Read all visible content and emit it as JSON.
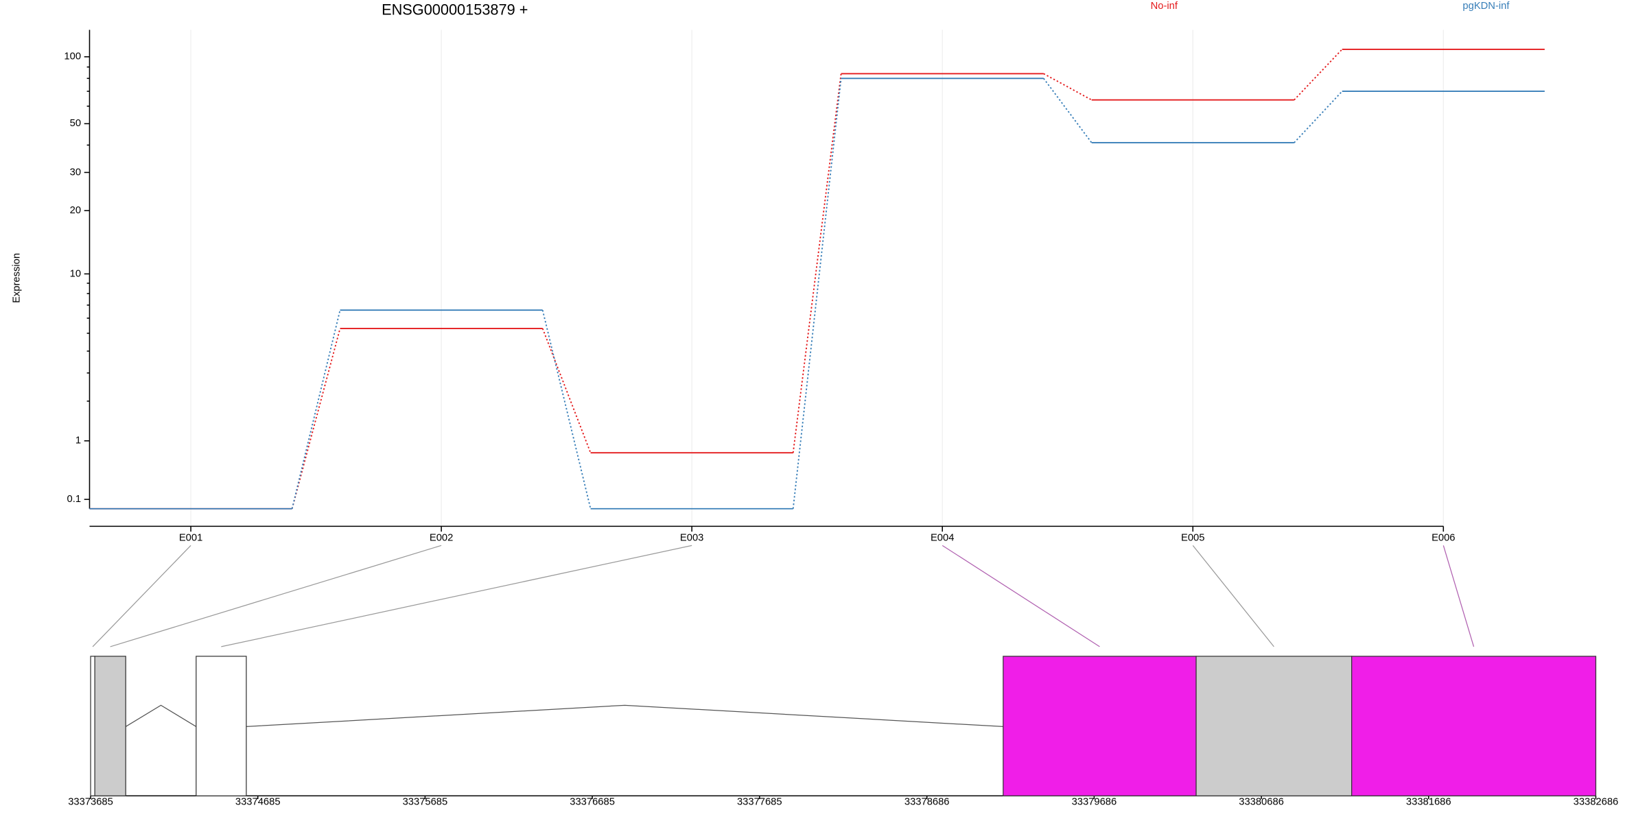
{
  "chart_data": {
    "type": "line",
    "title": "ENSG00000153879 +",
    "y_label": "Expression",
    "yscale": "log1p",
    "categories": [
      "E001",
      "E002",
      "E003",
      "E004",
      "E005",
      "E006"
    ],
    "series": [
      {
        "name": "No-inf",
        "color": "#e41a1c",
        "values": [
          0,
          5.3,
          0.77,
          84,
          64,
          108
        ]
      },
      {
        "name": "pgKDN-inf",
        "color": "#377eb8",
        "values": [
          0,
          6.6,
          0,
          80,
          41,
          70
        ]
      }
    ],
    "ylim": [
      0,
      132
    ],
    "yticks": [
      0.1,
      1,
      10,
      20,
      30,
      50,
      100
    ],
    "yminorticks": [
      2,
      3,
      4,
      5,
      6,
      7,
      8,
      9,
      40,
      60,
      70,
      80,
      90
    ],
    "grid": true,
    "legend": "top-right",
    "gene_model": {
      "xlim": [
        33373685,
        33382686
      ],
      "xticks": [
        33373685,
        33374685,
        33375685,
        33376685,
        33377685,
        33378686,
        33379686,
        33380686,
        33381686,
        33382686
      ],
      "exons": [
        {
          "start": 33373685,
          "end": 33373710,
          "color": "#ffffff"
        },
        {
          "start": 33373710,
          "end": 33373895,
          "color": "#cccccc"
        },
        {
          "start": 33374316,
          "end": 33374616,
          "color": "#ffffff"
        },
        {
          "start": 33379142,
          "end": 33380296,
          "color": "#f01ee8"
        },
        {
          "start": 33380296,
          "end": 33381226,
          "color": "#cccccc"
        },
        {
          "start": 33381226,
          "end": 33382686,
          "color": "#f01ee8"
        }
      ]
    }
  }
}
